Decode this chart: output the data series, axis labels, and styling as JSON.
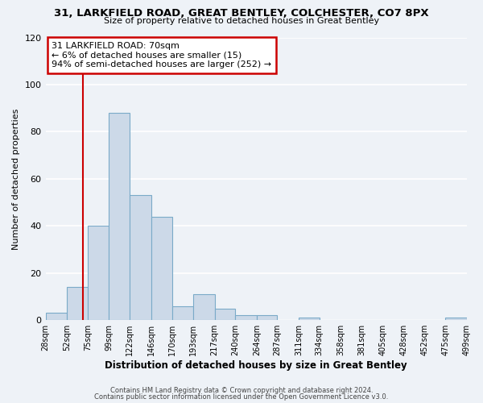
{
  "title": "31, LARKFIELD ROAD, GREAT BENTLEY, COLCHESTER, CO7 8PX",
  "subtitle": "Size of property relative to detached houses in Great Bentley",
  "xlabel": "Distribution of detached houses by size in Great Bentley",
  "ylabel": "Number of detached properties",
  "bin_edges": [
    28,
    52,
    75,
    99,
    122,
    146,
    170,
    193,
    217,
    240,
    264,
    287,
    311,
    334,
    358,
    381,
    405,
    428,
    452,
    475,
    499
  ],
  "bar_heights": [
    3,
    14,
    40,
    88,
    53,
    44,
    6,
    11,
    5,
    2,
    2,
    0,
    1,
    0,
    0,
    0,
    0,
    0,
    0,
    1
  ],
  "bar_color": "#ccd9e8",
  "bar_edgecolor": "#7aaac8",
  "property_size": 70,
  "vline_color": "#cc0000",
  "annotation_title": "31 LARKFIELD ROAD: 70sqm",
  "annotation_line1": "← 6% of detached houses are smaller (15)",
  "annotation_line2": "94% of semi-detached houses are larger (252) →",
  "annotation_box_edgecolor": "#cc0000",
  "ylim": [
    0,
    120
  ],
  "yticks": [
    0,
    20,
    40,
    60,
    80,
    100,
    120
  ],
  "tick_labels": [
    "28sqm",
    "52sqm",
    "75sqm",
    "99sqm",
    "122sqm",
    "146sqm",
    "170sqm",
    "193sqm",
    "217sqm",
    "240sqm",
    "264sqm",
    "287sqm",
    "311sqm",
    "334sqm",
    "358sqm",
    "381sqm",
    "405sqm",
    "428sqm",
    "452sqm",
    "475sqm",
    "499sqm"
  ],
  "footer1": "Contains HM Land Registry data © Crown copyright and database right 2024.",
  "footer2": "Contains public sector information licensed under the Open Government Licence v3.0.",
  "background_color": "#eef2f7",
  "grid_color": "#ffffff"
}
